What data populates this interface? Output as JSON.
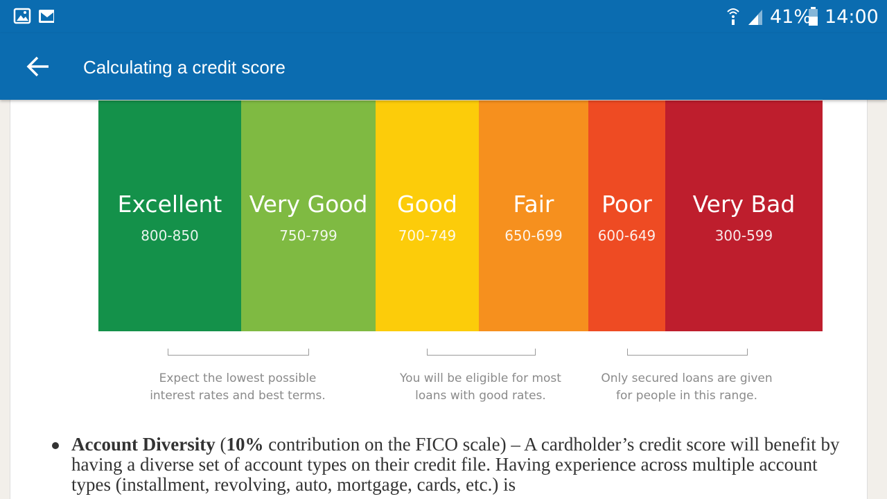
{
  "status_bar": {
    "battery": "41%",
    "time": "14:00"
  },
  "app_bar": {
    "title": "Calculating a credit score"
  },
  "credit_scale": {
    "bands": [
      {
        "label": "Excellent",
        "range": "800-850",
        "color": "#14914a"
      },
      {
        "label": "Very Good",
        "range": "750-799",
        "color": "#7fba42"
      },
      {
        "label": "Good",
        "range": "700-749",
        "color": "#fccc0a"
      },
      {
        "label": "Fair",
        "range": "650-699",
        "color": "#f6901e"
      },
      {
        "label": "Poor",
        "range": "600-649",
        "color": "#ee4b23"
      },
      {
        "label": "Very Bad",
        "range": "300-599",
        "color": "#be1e2d"
      }
    ],
    "notes": [
      {
        "lines": [
          "Expect the lowest possible",
          "interest rates and best terms."
        ]
      },
      {
        "lines": [
          "You will be eligible for most",
          "loans with good rates."
        ]
      },
      {
        "lines": [
          "Only secured loans are given",
          "for people in this range."
        ]
      }
    ]
  },
  "content": {
    "bullet": [
      {
        "text": "Account Diversity",
        "bold": true
      },
      {
        "text": " (",
        "bold": false
      },
      {
        "text": "10%",
        "bold": true
      },
      {
        "text": " contribution on the FICO scale) – A cardholder’s credit score will benefit by having a diverse set of account types on their credit file. Having experience across multiple account types (installment, revolving, auto, mortgage, cards, etc.) is",
        "bold": false
      }
    ]
  }
}
